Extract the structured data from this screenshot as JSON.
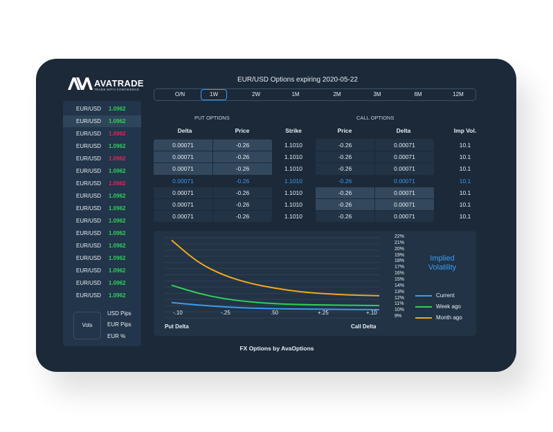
{
  "brand": {
    "name": "AVATRADE",
    "tagline": "TRADE WITH CONFIDENCE"
  },
  "title": "EUR/USD Options expiring 2020-05-22",
  "tabs": [
    "O/N",
    "1W",
    "2W",
    "1M",
    "2M",
    "3M",
    "6M",
    "12M"
  ],
  "active_tab": "1W",
  "rates": [
    {
      "pair": "EUR/USD",
      "value": "1.0962",
      "dir": "up"
    },
    {
      "pair": "EUR/USD",
      "value": "1.0962",
      "dir": "up"
    },
    {
      "pair": "EUR/USD",
      "value": "1.0962",
      "dir": "down"
    },
    {
      "pair": "EUR/USD",
      "value": "1.0962",
      "dir": "up"
    },
    {
      "pair": "EUR/USD",
      "value": "1.0962",
      "dir": "down"
    },
    {
      "pair": "EUR/USD",
      "value": "1.0962",
      "dir": "up"
    },
    {
      "pair": "EUR/USD",
      "value": "1.0962",
      "dir": "down"
    },
    {
      "pair": "EUR/USD",
      "value": "1.0962",
      "dir": "up"
    },
    {
      "pair": "EUR/USD",
      "value": "1.0962",
      "dir": "up"
    },
    {
      "pair": "EUR/USD",
      "value": "1.0962",
      "dir": "up"
    },
    {
      "pair": "EUR/USD",
      "value": "1.0962",
      "dir": "up"
    },
    {
      "pair": "EUR/USD",
      "value": "1.0962",
      "dir": "up"
    },
    {
      "pair": "EUR/USD",
      "value": "1.0962",
      "dir": "up"
    },
    {
      "pair": "EUR/USD",
      "value": "1.0962",
      "dir": "up"
    },
    {
      "pair": "EUR/USD",
      "value": "1.0962",
      "dir": "up"
    },
    {
      "pair": "EUR/USD",
      "value": "1.0962",
      "dir": "up"
    }
  ],
  "vols_button": "Vols",
  "units": [
    "USD Pips",
    "EUR Pips",
    "EUR %"
  ],
  "put_label": "PUT OPTIONS",
  "call_label": "CALL OPTIONS",
  "headers": {
    "delta": "Delta",
    "price": "Price",
    "strike": "Strike",
    "imp_vol": "Imp Vol."
  },
  "options_rows": [
    {
      "put_delta": "0.00071",
      "put_price": "-0.26",
      "strike": "1.1010",
      "call_price": "-0.26",
      "call_delta": "0.00071",
      "imp_vol": "10.1"
    },
    {
      "put_delta": "0.00071",
      "put_price": "-0.26",
      "strike": "1.1010",
      "call_price": "-0.26",
      "call_delta": "0.00071",
      "imp_vol": "10.1"
    },
    {
      "put_delta": "0.00071",
      "put_price": "-0.26",
      "strike": "1.1010",
      "call_price": "-0.26",
      "call_delta": "0.00071",
      "imp_vol": "10.1"
    },
    {
      "put_delta": "0.00071",
      "put_price": "-0.26",
      "strike": "1.1010",
      "call_price": "-0.26",
      "call_delta": "0.00071",
      "imp_vol": "10.1"
    },
    {
      "put_delta": "0.00071",
      "put_price": "-0.26",
      "strike": "1.1010",
      "call_price": "-0.26",
      "call_delta": "0.00071",
      "imp_vol": "10.1"
    },
    {
      "put_delta": "0.00071",
      "put_price": "-0.26",
      "strike": "1.1010",
      "call_price": "-0.26",
      "call_delta": "0.00071",
      "imp_vol": "10.1"
    },
    {
      "put_delta": "0.00071",
      "put_price": "-0.26",
      "strike": "1.1010",
      "call_price": "-0.26",
      "call_delta": "0.00071",
      "imp_vol": "10.1"
    }
  ],
  "selected_row": 3,
  "chart_data": {
    "type": "line",
    "title": "Implied Volatility",
    "x_ticks": [
      "-.10",
      "-.25",
      ".50",
      "+.25",
      "+.10"
    ],
    "x_left_label": "Put Delta",
    "x_right_label": "Call Delta",
    "y_ticks": [
      "22%",
      "21%",
      "20%",
      "19%",
      "18%",
      "17%",
      "16%",
      "15%",
      "14%",
      "13%",
      "12%",
      "11%",
      "10%",
      "9%"
    ],
    "ylim": [
      9,
      22
    ],
    "x": [
      0,
      0.5,
      1,
      1.5,
      2,
      2.5,
      3,
      3.5,
      4
    ],
    "series": [
      {
        "name": "Current",
        "color": "#3a9cf0",
        "values": [
          11.5,
          11.1,
          10.8,
          10.6,
          10.5,
          10.45,
          10.4,
          10.38,
          10.35
        ]
      },
      {
        "name": "Week ago",
        "color": "#2fd15a",
        "values": [
          14.3,
          13.0,
          12.1,
          11.6,
          11.3,
          11.15,
          11.1,
          11.05,
          11.0
        ]
      },
      {
        "name": "Month ago",
        "color": "#f2a81d",
        "values": [
          21.6,
          18.0,
          15.9,
          14.6,
          13.8,
          13.2,
          12.9,
          12.7,
          12.6
        ]
      }
    ]
  },
  "footer": "FX Options by AvaOptions"
}
